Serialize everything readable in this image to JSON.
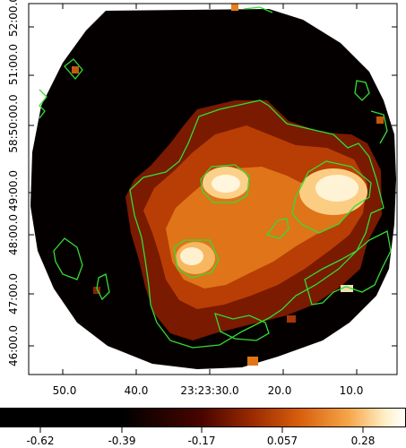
{
  "image": {
    "colormap": "heat",
    "contour_color": "#33dd33",
    "frame_color": "#000000"
  },
  "axes": {
    "x_ticks": [
      "50.0",
      "40.0",
      "23:23:30.0",
      "20.0",
      "10.0"
    ],
    "y_ticks": [
      "52:00.0",
      "51:00.0",
      "58:50:00.0",
      "49:00.0",
      "48:00.0",
      "47:00.0",
      "46:00.0"
    ]
  },
  "colorbar": {
    "ticks": [
      "-0.62",
      "-0.39",
      "-0.17",
      "0.057",
      "0.28"
    ],
    "range": [
      -0.73,
      0.39
    ]
  }
}
